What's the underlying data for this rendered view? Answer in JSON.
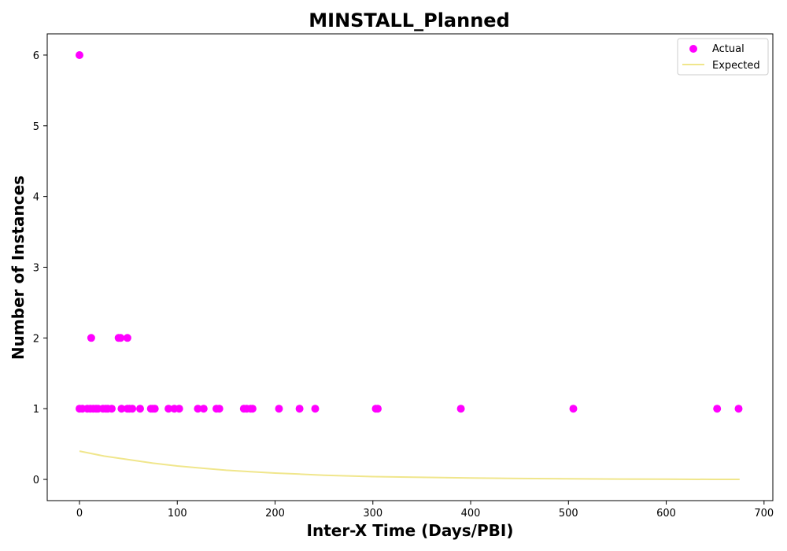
{
  "chart_data": {
    "type": "scatter",
    "title": "MINSTALL_Planned",
    "xlabel": "Inter-X Time (Days/PBI)",
    "ylabel": "Number of Instances",
    "xlim": [
      -33,
      709
    ],
    "ylim": [
      -0.3,
      6.3
    ],
    "xticks": [
      0,
      100,
      200,
      300,
      400,
      500,
      600,
      700
    ],
    "yticks": [
      0,
      1,
      2,
      3,
      4,
      5,
      6
    ],
    "grid": false,
    "legend_position": "top-right",
    "colors": {
      "actual": "#ff00ff",
      "expected": "#f0e68c"
    },
    "series": [
      {
        "name": "Actual",
        "kind": "scatter",
        "points": [
          [
            0,
            6
          ],
          [
            0,
            1
          ],
          [
            3,
            1
          ],
          [
            8,
            1
          ],
          [
            12,
            2
          ],
          [
            11,
            1
          ],
          [
            14,
            1
          ],
          [
            17,
            1
          ],
          [
            19,
            1
          ],
          [
            24,
            1
          ],
          [
            27,
            1
          ],
          [
            29,
            1
          ],
          [
            33,
            1
          ],
          [
            40,
            2
          ],
          [
            42,
            2
          ],
          [
            43,
            1
          ],
          [
            49,
            2
          ],
          [
            49,
            1
          ],
          [
            51,
            1
          ],
          [
            54,
            1
          ],
          [
            62,
            1
          ],
          [
            73,
            1
          ],
          [
            75,
            1
          ],
          [
            77,
            1
          ],
          [
            91,
            1
          ],
          [
            97,
            1
          ],
          [
            102,
            1
          ],
          [
            121,
            1
          ],
          [
            127,
            1
          ],
          [
            140,
            1
          ],
          [
            143,
            1
          ],
          [
            168,
            1
          ],
          [
            171,
            1
          ],
          [
            175,
            1
          ],
          [
            177,
            1
          ],
          [
            204,
            1
          ],
          [
            225,
            1
          ],
          [
            241,
            1
          ],
          [
            303,
            1
          ],
          [
            305,
            1
          ],
          [
            390,
            1
          ],
          [
            505,
            1
          ],
          [
            652,
            1
          ],
          [
            674,
            1
          ]
        ]
      },
      {
        "name": "Expected",
        "kind": "line",
        "points": [
          [
            0,
            0.4
          ],
          [
            25,
            0.33
          ],
          [
            50,
            0.28
          ],
          [
            75,
            0.23
          ],
          [
            100,
            0.19
          ],
          [
            125,
            0.16
          ],
          [
            150,
            0.13
          ],
          [
            175,
            0.11
          ],
          [
            200,
            0.09
          ],
          [
            225,
            0.075
          ],
          [
            250,
            0.06
          ],
          [
            300,
            0.04
          ],
          [
            350,
            0.03
          ],
          [
            400,
            0.02
          ],
          [
            450,
            0.013
          ],
          [
            500,
            0.008
          ],
          [
            550,
            0.005
          ],
          [
            600,
            0.003
          ],
          [
            650,
            0.001
          ],
          [
            675,
            0.0
          ]
        ]
      }
    ]
  }
}
